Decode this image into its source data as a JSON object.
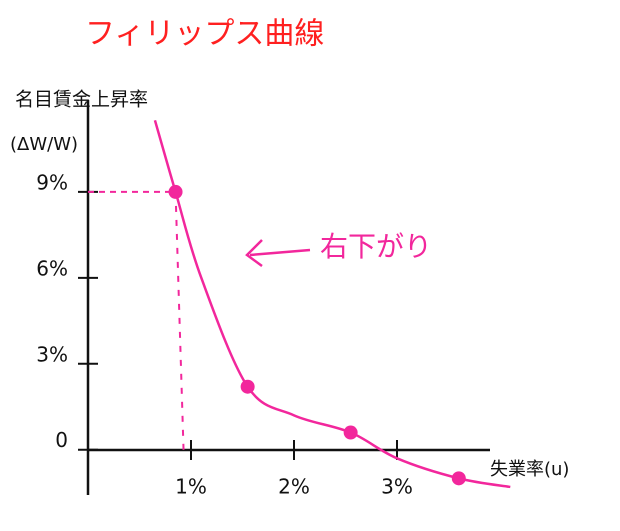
{
  "chart_data": {
    "type": "line",
    "title": "フィリップス曲線",
    "y_label": "名目賃金上昇率",
    "y_label_unit": "(ΔW/W)",
    "x_label": "失業率(u)",
    "annotation": "右下がり",
    "curve": {
      "color": "#f2279c",
      "x": [
        0.65,
        0.85,
        1.1,
        1.55,
        2.0,
        2.55,
        3.0,
        3.6,
        4.1
      ],
      "y": [
        11.5,
        9,
        6,
        2.2,
        1.2,
        0.6,
        -0.3,
        -1,
        -1.3
      ]
    },
    "points": {
      "color": "#f2279c",
      "x": [
        0.85,
        1.55,
        2.55,
        3.6
      ],
      "y": [
        9,
        2.2,
        0.6,
        -1
      ]
    },
    "xlim": [
      0,
      4
    ],
    "ylim": [
      -2,
      12
    ],
    "xticks": [
      {
        "value": 1,
        "label": "1%"
      },
      {
        "value": 2,
        "label": "2%"
      },
      {
        "value": 3,
        "label": "3%"
      }
    ],
    "yticks": [
      0,
      {
        "value": 3,
        "label": "3%"
      },
      {
        "value": 6,
        "label": "6%"
      },
      {
        "value": 9,
        "label": "9%"
      }
    ]
  }
}
